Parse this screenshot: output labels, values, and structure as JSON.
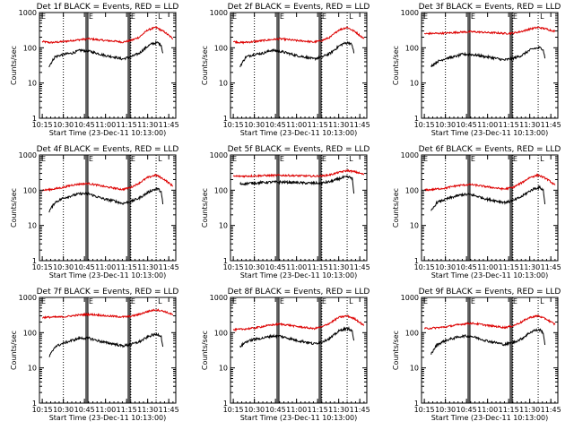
{
  "chart_data": {
    "type": "line",
    "yscale": "log",
    "ylim": [
      1,
      1000
    ],
    "ylabel": "Counts/sec",
    "xlabel": "Start Time (23-Dec-11 10:13:00)",
    "x_tick_labels": [
      "10:15",
      "10:30",
      "10:45",
      "11:00",
      "11:15",
      "11:30",
      "11:45"
    ],
    "x_ticks_min": [
      10.25,
      10.5,
      10.75,
      11.0,
      11.25,
      11.5,
      11.75
    ],
    "xlim_min": [
      10.2167,
      11.8333
    ],
    "y_tick_labels": [
      "1",
      "10",
      "100",
      "1000"
    ],
    "y_ticks": [
      1,
      10,
      100,
      1000
    ],
    "marker_E": "E",
    "marker_L": "L",
    "dotted_lines_min": [
      10.5,
      11.3,
      11.6
    ],
    "solid_line_pairs_min": [
      [
        10.77,
        10.79
      ],
      [
        11.27,
        11.29
      ]
    ],
    "legend": {
      "black_name": "Events",
      "red_name": "LLD"
    },
    "colors": {
      "events": "#000000",
      "lld": "#dd0000"
    },
    "panels": [
      {
        "title": "Det 1f BLACK = Events, RED = LLD",
        "events": {
          "x": [
            10.33,
            10.4,
            10.5,
            10.6,
            10.7,
            10.8,
            10.9,
            11.0,
            11.1,
            11.2,
            11.3,
            11.4,
            11.5,
            11.55,
            11.62,
            11.66,
            11.68
          ],
          "y": [
            30,
            55,
            65,
            70,
            85,
            80,
            70,
            60,
            55,
            48,
            55,
            70,
            110,
            130,
            140,
            120,
            70
          ]
        },
        "lld": {
          "x": [
            10.25,
            10.35,
            10.5,
            10.6,
            10.7,
            10.8,
            10.9,
            11.0,
            11.1,
            11.2,
            11.3,
            11.4,
            11.5,
            11.6,
            11.7,
            11.8
          ],
          "y": [
            150,
            140,
            150,
            160,
            170,
            180,
            170,
            160,
            155,
            145,
            160,
            200,
            320,
            380,
            280,
            180
          ]
        }
      },
      {
        "title": "Det 2f BLACK = Events, RED = LLD",
        "events": {
          "x": [
            10.33,
            10.4,
            10.5,
            10.6,
            10.7,
            10.8,
            10.9,
            11.0,
            11.1,
            11.2,
            11.3,
            11.4,
            11.5,
            11.55,
            11.62,
            11.66,
            11.68
          ],
          "y": [
            30,
            55,
            65,
            70,
            85,
            80,
            70,
            60,
            55,
            48,
            55,
            70,
            110,
            130,
            140,
            120,
            70
          ]
        },
        "lld": {
          "x": [
            10.25,
            10.35,
            10.5,
            10.6,
            10.7,
            10.8,
            10.9,
            11.0,
            11.1,
            11.2,
            11.3,
            11.4,
            11.5,
            11.6,
            11.7,
            11.8
          ],
          "y": [
            150,
            140,
            150,
            160,
            170,
            180,
            170,
            160,
            155,
            145,
            160,
            200,
            320,
            380,
            280,
            180
          ]
        }
      },
      {
        "title": "Det 3f BLACK = Events, RED = LLD",
        "events": {
          "x": [
            10.33,
            10.4,
            10.5,
            10.6,
            10.7,
            10.8,
            10.9,
            11.0,
            11.1,
            11.2,
            11.3,
            11.4,
            11.5,
            11.55,
            11.62,
            11.66,
            11.68
          ],
          "y": [
            30,
            40,
            50,
            55,
            65,
            65,
            60,
            55,
            50,
            45,
            50,
            60,
            85,
            95,
            100,
            90,
            50
          ]
        },
        "lld": {
          "x": [
            10.25,
            10.35,
            10.5,
            10.6,
            10.7,
            10.8,
            10.9,
            11.0,
            11.1,
            11.2,
            11.3,
            11.4,
            11.5,
            11.6,
            11.7,
            11.8
          ],
          "y": [
            250,
            255,
            260,
            270,
            280,
            285,
            280,
            270,
            265,
            255,
            260,
            290,
            340,
            380,
            340,
            290
          ]
        }
      },
      {
        "title": "Det 4f BLACK = Events, RED = LLD",
        "events": {
          "x": [
            10.33,
            10.4,
            10.5,
            10.6,
            10.7,
            10.8,
            10.9,
            11.0,
            11.1,
            11.2,
            11.3,
            11.4,
            11.5,
            11.55,
            11.62,
            11.66,
            11.68
          ],
          "y": [
            25,
            45,
            60,
            70,
            80,
            80,
            65,
            55,
            50,
            42,
            48,
            60,
            85,
            100,
            110,
            90,
            40
          ]
        },
        "lld": {
          "x": [
            10.25,
            10.35,
            10.5,
            10.6,
            10.7,
            10.8,
            10.9,
            11.0,
            11.1,
            11.2,
            11.3,
            11.4,
            11.5,
            11.6,
            11.7,
            11.8
          ],
          "y": [
            100,
            105,
            120,
            140,
            150,
            155,
            140,
            125,
            115,
            105,
            120,
            160,
            230,
            270,
            200,
            130
          ]
        }
      },
      {
        "title": "Det 5f BLACK = Events, RED = LLD",
        "events": {
          "x": [
            10.33,
            10.4,
            10.5,
            10.6,
            10.7,
            10.8,
            10.9,
            11.0,
            11.1,
            11.2,
            11.3,
            11.4,
            11.5,
            11.55,
            11.62,
            11.66,
            11.68
          ],
          "y": [
            150,
            155,
            160,
            165,
            170,
            170,
            168,
            165,
            160,
            158,
            160,
            175,
            210,
            230,
            235,
            220,
            80
          ]
        },
        "lld": {
          "x": [
            10.25,
            10.35,
            10.5,
            10.6,
            10.7,
            10.8,
            10.9,
            11.0,
            11.1,
            11.2,
            11.3,
            11.4,
            11.5,
            11.6,
            11.7,
            11.8
          ],
          "y": [
            250,
            250,
            255,
            260,
            262,
            265,
            262,
            258,
            255,
            250,
            255,
            275,
            320,
            360,
            330,
            280
          ]
        }
      },
      {
        "title": "Det 6f BLACK = Events, RED = LLD",
        "events": {
          "x": [
            10.33,
            10.4,
            10.5,
            10.6,
            10.7,
            10.8,
            10.9,
            11.0,
            11.1,
            11.2,
            11.3,
            11.4,
            11.5,
            11.55,
            11.62,
            11.66,
            11.68
          ],
          "y": [
            25,
            45,
            55,
            65,
            75,
            75,
            65,
            55,
            50,
            45,
            50,
            65,
            95,
            110,
            120,
            100,
            40
          ]
        },
        "lld": {
          "x": [
            10.25,
            10.35,
            10.5,
            10.6,
            10.7,
            10.8,
            10.9,
            11.0,
            11.1,
            11.2,
            11.3,
            11.4,
            11.5,
            11.6,
            11.7,
            11.8
          ],
          "y": [
            100,
            105,
            115,
            130,
            140,
            145,
            135,
            125,
            115,
            108,
            120,
            160,
            230,
            270,
            210,
            140
          ]
        }
      },
      {
        "title": "Det 7f BLACK = Events, RED = LLD",
        "events": {
          "x": [
            10.33,
            10.4,
            10.5,
            10.6,
            10.7,
            10.8,
            10.9,
            11.0,
            11.1,
            11.2,
            11.3,
            11.4,
            11.5,
            11.55,
            11.62,
            11.66,
            11.68
          ],
          "y": [
            20,
            40,
            50,
            60,
            70,
            70,
            60,
            52,
            48,
            42,
            46,
            55,
            75,
            85,
            90,
            80,
            40
          ]
        },
        "lld": {
          "x": [
            10.25,
            10.35,
            10.5,
            10.6,
            10.7,
            10.8,
            10.9,
            11.0,
            11.1,
            11.2,
            11.3,
            11.4,
            11.5,
            11.6,
            11.7,
            11.8
          ],
          "y": [
            270,
            275,
            280,
            300,
            320,
            330,
            320,
            300,
            290,
            280,
            290,
            330,
            400,
            450,
            400,
            320
          ]
        }
      },
      {
        "title": "Det 8f BLACK = Events, RED = LLD",
        "events": {
          "x": [
            10.33,
            10.4,
            10.5,
            10.6,
            10.7,
            10.8,
            10.9,
            11.0,
            11.1,
            11.2,
            11.3,
            11.4,
            11.5,
            11.55,
            11.62,
            11.66,
            11.68
          ],
          "y": [
            40,
            55,
            65,
            70,
            80,
            80,
            70,
            60,
            55,
            48,
            55,
            70,
            110,
            125,
            130,
            110,
            60
          ]
        },
        "lld": {
          "x": [
            10.25,
            10.35,
            10.5,
            10.6,
            10.7,
            10.8,
            10.9,
            11.0,
            11.1,
            11.2,
            11.3,
            11.4,
            11.5,
            11.6,
            11.7,
            11.8
          ],
          "y": [
            120,
            125,
            135,
            150,
            165,
            175,
            165,
            150,
            140,
            130,
            145,
            190,
            270,
            300,
            240,
            160
          ]
        }
      },
      {
        "title": "Det 9f BLACK = Events, RED = LLD",
        "events": {
          "x": [
            10.33,
            10.4,
            10.5,
            10.6,
            10.7,
            10.8,
            10.9,
            11.0,
            11.1,
            11.2,
            11.3,
            11.4,
            11.5,
            11.55,
            11.62,
            11.66,
            11.68
          ],
          "y": [
            25,
            45,
            60,
            70,
            80,
            80,
            68,
            58,
            52,
            46,
            52,
            66,
            100,
            115,
            120,
            100,
            45
          ]
        },
        "lld": {
          "x": [
            10.25,
            10.35,
            10.5,
            10.6,
            10.7,
            10.8,
            10.9,
            11.0,
            11.1,
            11.2,
            11.3,
            11.4,
            11.5,
            11.6,
            11.7,
            11.8
          ],
          "y": [
            130,
            135,
            145,
            160,
            175,
            185,
            175,
            160,
            150,
            140,
            155,
            200,
            270,
            300,
            240,
            170
          ]
        }
      }
    ]
  }
}
